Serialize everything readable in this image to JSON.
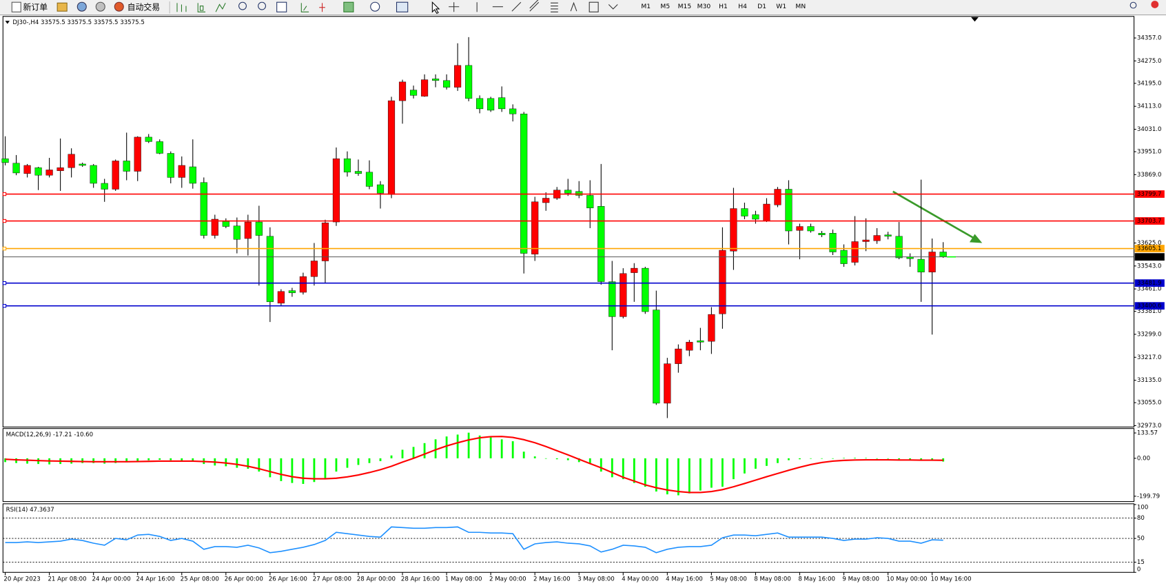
{
  "toolbar": {
    "new_order": "新订单",
    "auto_trading": "自动交易",
    "timeframes": [
      "M1",
      "M5",
      "M15",
      "M30",
      "H1",
      "H4",
      "D1",
      "W1",
      "MN"
    ]
  },
  "chart_data": [
    {
      "type": "candlestick",
      "title": "DJ30-,H4  33575.5 33575.5 33575.5 33575.5",
      "categories": [
        "20 Apr 2023",
        null,
        null,
        null,
        "21 Apr 08:00",
        null,
        null,
        null,
        "24 Apr 00:00",
        null,
        null,
        null,
        "24 Apr 16:00",
        null,
        null,
        null,
        "25 Apr 08:00",
        null,
        null,
        null,
        "26 Apr 00:00",
        null,
        null,
        null,
        "26 Apr 16:00",
        null,
        null,
        null,
        "27 Apr 08:00",
        null,
        null,
        null,
        "28 Apr 00:00",
        null,
        null,
        null,
        "28 Apr 16:00",
        null,
        null,
        null,
        "1 May 08:00",
        null,
        null,
        null,
        "2 May 00:00",
        null,
        null,
        null,
        "2 May 16:00",
        null,
        null,
        null,
        "3 May 08:00",
        null,
        null,
        null,
        "4 May 00:00",
        null,
        null,
        null,
        "4 May 16:00",
        null,
        null,
        null,
        "5 May 08:00",
        null,
        null,
        null,
        "8 May 08:00",
        null,
        null,
        null,
        "8 May 16:00",
        null,
        null,
        null,
        "9 May 08:00",
        null,
        null,
        null,
        "10 May 00:00",
        null,
        null,
        null,
        "10 May 16:00",
        null
      ],
      "open": [
        33926,
        33910,
        33873,
        33894,
        33867,
        33883,
        33894,
        33907,
        33902,
        33838,
        33817,
        33918,
        33881,
        34003,
        33987,
        33945,
        33859,
        33897,
        33841,
        33652,
        33702,
        33686,
        33641,
        33700,
        33649,
        33410,
        33455,
        33449,
        33505,
        33561,
        33700,
        33926,
        33881,
        33878,
        33833,
        33798,
        34133,
        34171,
        34149,
        34211,
        34205,
        34181,
        34259,
        34141,
        34141,
        34144,
        34104,
        34086,
        33585,
        33769,
        33785,
        33814,
        33809,
        33795,
        33756,
        33487,
        33362,
        33519,
        33535,
        33386,
        33053,
        33194,
        33242,
        33276,
        33274,
        33372,
        33596,
        33748,
        33726,
        33705,
        33761,
        33817,
        33670,
        33684,
        33660,
        33660,
        33599,
        33556,
        33630,
        33633,
        33654,
        33649,
        33575,
        33567,
        33521,
        33593
      ],
      "high": [
        34006,
        33939,
        33907,
        33897,
        33929,
        33998,
        33963,
        33912,
        33907,
        33854,
        33923,
        34019,
        34006,
        34014,
        33995,
        33952,
        33934,
        33995,
        33859,
        33726,
        33713,
        33716,
        33726,
        33758,
        33681,
        33460,
        33465,
        33519,
        33625,
        33708,
        33966,
        33952,
        33923,
        33920,
        33846,
        34147,
        34208,
        34187,
        34227,
        34227,
        34227,
        34338,
        34360,
        34152,
        34147,
        34184,
        34120,
        34093,
        33790,
        33806,
        33825,
        33854,
        33846,
        33849,
        33907,
        33561,
        33535,
        33553,
        33540,
        33455,
        33215,
        33263,
        33279,
        33322,
        33396,
        33681,
        33822,
        33769,
        33740,
        33785,
        33825,
        33849,
        33694,
        33694,
        33668,
        33673,
        33620,
        33721,
        33713,
        33678,
        33665,
        33700,
        33588,
        33851,
        33641,
        33628
      ],
      "low": [
        33902,
        33867,
        33859,
        33814,
        33859,
        33811,
        33859,
        33897,
        33822,
        33772,
        33811,
        33849,
        33846,
        33982,
        33942,
        33838,
        33822,
        33819,
        33641,
        33641,
        33678,
        33588,
        33580,
        33473,
        33343,
        33399,
        33433,
        33441,
        33473,
        33481,
        33686,
        33862,
        33865,
        33817,
        33748,
        33785,
        34051,
        34141,
        34147,
        34181,
        34173,
        34168,
        34131,
        34088,
        34093,
        34093,
        34059,
        33516,
        33561,
        33740,
        33779,
        33793,
        33785,
        33678,
        33476,
        33242,
        33356,
        33415,
        33372,
        33047,
        33000,
        33162,
        33221,
        33242,
        33229,
        33319,
        33529,
        33710,
        33694,
        33700,
        33753,
        33620,
        33567,
        33662,
        33646,
        33582,
        33540,
        33545,
        33596,
        33622,
        33638,
        33567,
        33540,
        33415,
        33298,
        33572
      ],
      "close": [
        33912,
        33875,
        33902,
        33867,
        33886,
        33894,
        33942,
        33902,
        33838,
        33817,
        33918,
        33881,
        34003,
        33987,
        33945,
        33859,
        33902,
        33838,
        33652,
        33710,
        33684,
        33638,
        33700,
        33652,
        33415,
        33452,
        33447,
        33505,
        33561,
        33697,
        33926,
        33878,
        33873,
        33827,
        33803,
        34133,
        34200,
        34152,
        34208,
        34205,
        34181,
        34259,
        34141,
        34104,
        34099,
        34104,
        34086,
        33588,
        33772,
        33785,
        33814,
        33803,
        33795,
        33750,
        33487,
        33362,
        33516,
        33535,
        33380,
        33053,
        33194,
        33247,
        33271,
        33271,
        33370,
        33599,
        33748,
        33721,
        33710,
        33764,
        33817,
        33668,
        33684,
        33668,
        33654,
        33593,
        33551,
        33630,
        33636,
        33652,
        33649,
        33572,
        33569,
        33521,
        33593,
        33575.5
      ],
      "up_color": "#ff0000",
      "down_color": "#00ff00",
      "ylim": [
        32968,
        34434
      ],
      "yticks": [
        {
          "value": 34357,
          "label": "34357.0"
        },
        {
          "value": 34275,
          "label": "34275.0"
        },
        {
          "value": 34195,
          "label": "34195.0"
        },
        {
          "value": 34113,
          "label": "34113.0"
        },
        {
          "value": 34031,
          "label": "34031.0"
        },
        {
          "value": 33951,
          "label": "33951.0"
        },
        {
          "value": 33869,
          "label": "33869.0"
        },
        {
          "value": 33625,
          "label": "33625.0"
        },
        {
          "value": 33543,
          "label": "33543.0"
        },
        {
          "value": 33461,
          "label": "33461.0"
        },
        {
          "value": 33381,
          "label": "33381.0"
        },
        {
          "value": 33299,
          "label": "33299.0"
        },
        {
          "value": 33217,
          "label": "33217.0"
        },
        {
          "value": 33135,
          "label": "33135.0"
        },
        {
          "value": 33055,
          "label": "33055.0"
        },
        {
          "value": 32973,
          "label": "32973.0"
        }
      ],
      "levels": [
        {
          "value": 33799.7,
          "color": "#ff0000"
        },
        {
          "value": 33703.7,
          "color": "#ff0000"
        },
        {
          "value": 33605.1,
          "color": "#ffa500"
        },
        {
          "value": 33481.9,
          "color": "#0000cd"
        },
        {
          "value": 33400.6,
          "color": "#0000cd"
        }
      ],
      "grid": false
    },
    {
      "type": "macd",
      "title": "MACD(12,26,9) -17.21 -10.60",
      "histogram": {
        "color": "#00ff00",
        "values": [
          -20,
          -25,
          -28,
          -30,
          -32,
          -30,
          -28,
          -25,
          -25,
          -28,
          -25,
          -20,
          -15,
          -10,
          -8,
          -10,
          -15,
          -18,
          -30,
          -38,
          -42,
          -50,
          -55,
          -70,
          -100,
          -120,
          -130,
          -135,
          -125,
          -105,
          -70,
          -50,
          -35,
          -25,
          -15,
          15,
          45,
          60,
          80,
          100,
          115,
          125,
          135,
          120,
          110,
          100,
          90,
          35,
          10,
          0,
          -5,
          -10,
          -20,
          -30,
          -70,
          -100,
          -110,
          -130,
          -150,
          -175,
          -190,
          -195,
          -185,
          -170,
          -155,
          -150,
          -110,
          -80,
          -55,
          -40,
          -25,
          -10,
          -5,
          -2,
          0,
          0,
          2,
          3,
          2,
          0,
          -2,
          -5,
          -8,
          -10,
          -12,
          -17.21
        ]
      },
      "signal": {
        "color": "#ff0000",
        "values": [
          -5,
          -8,
          -10,
          -12,
          -14,
          -15,
          -16,
          -17,
          -18,
          -18,
          -18,
          -18,
          -17,
          -16,
          -15,
          -15,
          -15,
          -15,
          -17,
          -20,
          -25,
          -32,
          -42,
          -55,
          -70,
          -85,
          -97,
          -105,
          -108,
          -108,
          -105,
          -98,
          -88,
          -75,
          -60,
          -42,
          -20,
          0,
          22,
          45,
          65,
          82,
          97,
          108,
          114,
          115,
          110,
          98,
          82,
          62,
          40,
          18,
          -5,
          -28,
          -50,
          -75,
          -100,
          -120,
          -140,
          -155,
          -167,
          -175,
          -180,
          -180,
          -175,
          -165,
          -150,
          -133,
          -115,
          -97,
          -80,
          -63,
          -47,
          -33,
          -22,
          -15,
          -11,
          -9,
          -8,
          -8,
          -8,
          -9,
          -9,
          -10,
          -10,
          -10.6
        ]
      },
      "ylim": [
        -224,
        153
      ],
      "yticks": [
        133.57,
        {
          "value": 0,
          "label": "0.00"
        },
        -199.79
      ]
    },
    {
      "type": "rsi",
      "title": "RSI(14) 47.3637",
      "color": "#1e90ff",
      "values": [
        44,
        44,
        45,
        44,
        45,
        46,
        49,
        47,
        43,
        40,
        50,
        48,
        55,
        56,
        53,
        47,
        50,
        46,
        34,
        38,
        38,
        37,
        40,
        36,
        29,
        31,
        34,
        37,
        41,
        47,
        59,
        57,
        55,
        53,
        52,
        67,
        66,
        65,
        65,
        66,
        66,
        67,
        59,
        59,
        58,
        58,
        57,
        34,
        42,
        44,
        45,
        43,
        42,
        39,
        30,
        34,
        40,
        39,
        37,
        29,
        34,
        37,
        38,
        38,
        40,
        51,
        55,
        55,
        54,
        56,
        58,
        52,
        52,
        52,
        52,
        50,
        47,
        49,
        49,
        51,
        50,
        46,
        46,
        43,
        48,
        47.3637
      ],
      "ylim": [
        0,
        100
      ],
      "yticks": [
        100,
        80,
        50,
        15,
        0
      ],
      "levels": [
        80,
        50,
        15
      ]
    }
  ]
}
